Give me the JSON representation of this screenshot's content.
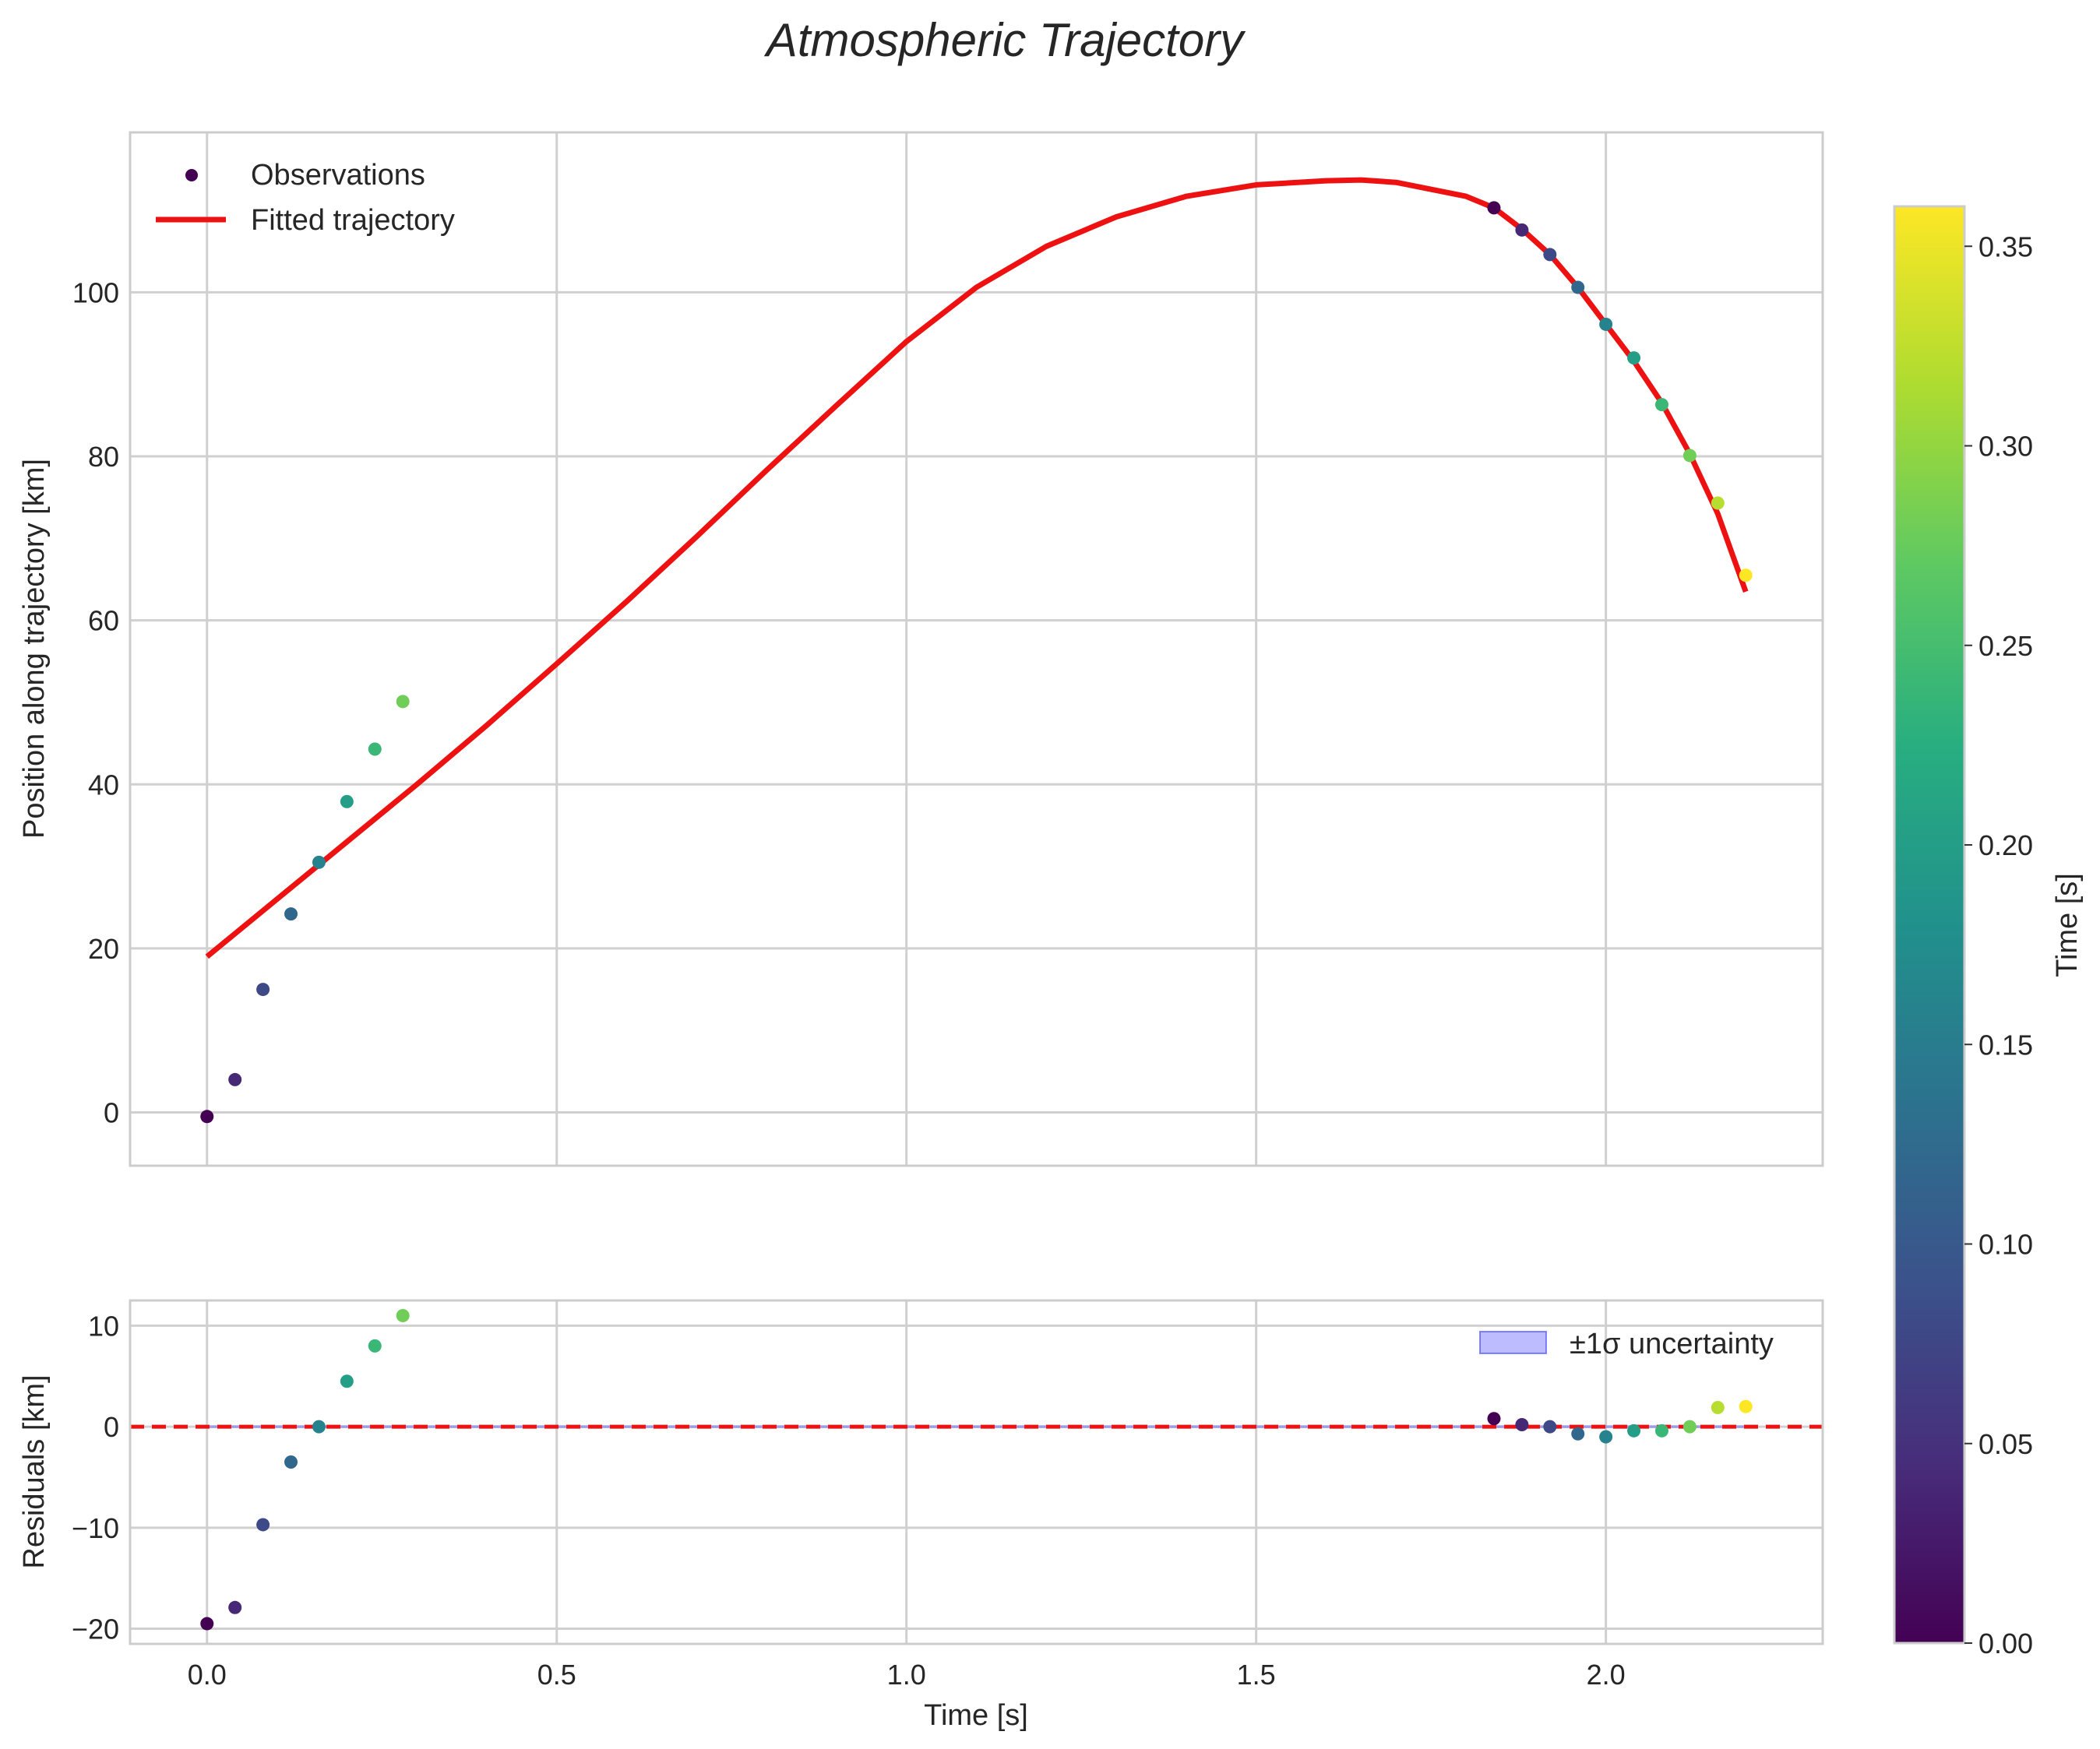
{
  "chart_data": [
    {
      "type": "scatter",
      "title": "Atmospheric Trajectory",
      "xlabel": "",
      "ylabel": "Position along trajectory [km]",
      "xlim": [
        -0.11,
        2.31
      ],
      "ylim": [
        -6.5,
        119.5
      ],
      "xticks": [
        0.0,
        0.5,
        1.0,
        1.5,
        2.0
      ],
      "yticks": [
        0,
        20,
        40,
        60,
        80,
        100
      ],
      "ytick_labels": [
        "0",
        "20",
        "40",
        "60",
        "80",
        "100"
      ],
      "grid": true,
      "legend": {
        "location": "top-left",
        "entries": [
          "Observations",
          "Fitted trajectory"
        ]
      },
      "series": [
        {
          "name": "Observations",
          "kind": "scatter",
          "colormap": "viridis",
          "x": [
            0.0,
            0.04,
            0.08,
            0.12,
            0.16,
            0.2,
            0.24,
            0.28,
            1.84,
            1.88,
            1.92,
            1.96,
            2.0,
            2.04,
            2.08,
            2.12,
            2.16,
            2.2
          ],
          "y": [
            -0.5,
            4.0,
            15.0,
            24.2,
            30.5,
            37.9,
            44.3,
            50.1,
            110.3,
            107.6,
            104.6,
            100.6,
            96.1,
            92.0,
            86.3,
            80.1,
            74.3,
            65.5
          ],
          "color_value": [
            0.0,
            0.04,
            0.08,
            0.12,
            0.16,
            0.2,
            0.24,
            0.28,
            0.0,
            0.04,
            0.08,
            0.12,
            0.16,
            0.2,
            0.24,
            0.28,
            0.32,
            0.36
          ]
        },
        {
          "name": "Fitted trajectory",
          "kind": "line",
          "color": "#ee1111",
          "x": [
            0.0,
            0.1,
            0.2,
            0.3,
            0.4,
            0.5,
            0.6,
            0.7,
            0.8,
            0.9,
            1.0,
            1.1,
            1.2,
            1.3,
            1.4,
            1.5,
            1.6,
            1.65,
            1.7,
            1.8,
            1.84,
            1.88,
            1.92,
            1.96,
            2.0,
            2.04,
            2.08,
            2.12,
            2.16,
            2.2
          ],
          "y": [
            19.0,
            26.0,
            33.0,
            40.0,
            47.2,
            54.7,
            62.3,
            70.2,
            78.3,
            86.2,
            94.0,
            100.6,
            105.6,
            109.2,
            111.7,
            113.1,
            113.6,
            113.7,
            113.4,
            111.7,
            110.3,
            107.7,
            104.6,
            100.6,
            96.1,
            91.6,
            86.5,
            80.3,
            73.0,
            63.5
          ]
        }
      ]
    },
    {
      "type": "scatter",
      "title": "",
      "xlabel": "Time [s]",
      "ylabel": "Residuals [km]",
      "xlim": [
        -0.11,
        2.31
      ],
      "ylim": [
        -21.5,
        12.5
      ],
      "xticks": [
        0.0,
        0.5,
        1.0,
        1.5,
        2.0
      ],
      "xtick_labels": [
        "0.0",
        "0.5",
        "1.0",
        "1.5",
        "2.0"
      ],
      "yticks": [
        10,
        0,
        -10,
        -20
      ],
      "ytick_labels": [
        "10",
        "0",
        "−10",
        "−20"
      ],
      "grid": true,
      "legend": {
        "location": "top-right",
        "entries": [
          "±1σ uncertainty"
        ]
      },
      "reference_line": {
        "y": 0,
        "color": "#ee1111",
        "style": "dashed"
      },
      "uncertainty_band": {
        "x_start": 0.0,
        "x_end": 2.2,
        "lower": -0.15,
        "upper": 0.15,
        "color": "#4040ff"
      },
      "series": [
        {
          "name": "Residuals",
          "kind": "scatter",
          "colormap": "viridis",
          "x": [
            0.0,
            0.04,
            0.08,
            0.12,
            0.16,
            0.2,
            0.24,
            0.28,
            1.84,
            1.88,
            1.92,
            1.96,
            2.0,
            2.04,
            2.08,
            2.12,
            2.16,
            2.2
          ],
          "y": [
            -19.5,
            -17.9,
            -9.7,
            -3.5,
            0.0,
            4.5,
            8.0,
            11.0,
            0.8,
            0.2,
            0.0,
            -0.7,
            -1.0,
            -0.4,
            -0.4,
            0.0,
            1.9,
            2.0
          ],
          "color_value": [
            0.0,
            0.04,
            0.08,
            0.12,
            0.16,
            0.2,
            0.24,
            0.28,
            0.0,
            0.04,
            0.08,
            0.12,
            0.16,
            0.2,
            0.24,
            0.28,
            0.32,
            0.36
          ]
        }
      ]
    },
    {
      "type": "colorbar",
      "label": "Time [s]",
      "colormap": "viridis",
      "range": [
        0.0,
        0.36
      ],
      "ticks": [
        0.0,
        0.05,
        0.1,
        0.15,
        0.2,
        0.25,
        0.3,
        0.35
      ],
      "tick_labels": [
        "0.00",
        "0.05",
        "0.10",
        "0.15",
        "0.20",
        "0.25",
        "0.30",
        "0.35"
      ]
    }
  ]
}
